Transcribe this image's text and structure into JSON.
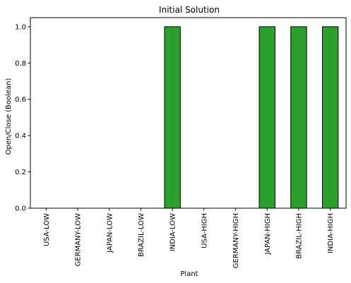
{
  "chart_data": {
    "type": "bar",
    "title": "Initial Solution",
    "xlabel": "Plant",
    "ylabel": "Open/Close (Boolean)",
    "categories": [
      "USA-LOW",
      "GERMANY-LOW",
      "JAPAN-LOW",
      "BRAZIL-LOW",
      "INDIA-LOW",
      "USA-HIGH",
      "GERMANY-HIGH",
      "JAPAN-HIGH",
      "BRAZIL-HIGH",
      "INDIA-HIGH"
    ],
    "values": [
      0,
      0,
      0,
      0,
      1,
      0,
      0,
      1,
      1,
      1
    ],
    "ylim": [
      0,
      1.05
    ],
    "yticks": [
      "0.0",
      "0.2",
      "0.4",
      "0.6",
      "0.8",
      "1.0"
    ],
    "bar_color": "#2ca02c",
    "edge_color": "#000000",
    "grid": false,
    "legend": "none"
  }
}
